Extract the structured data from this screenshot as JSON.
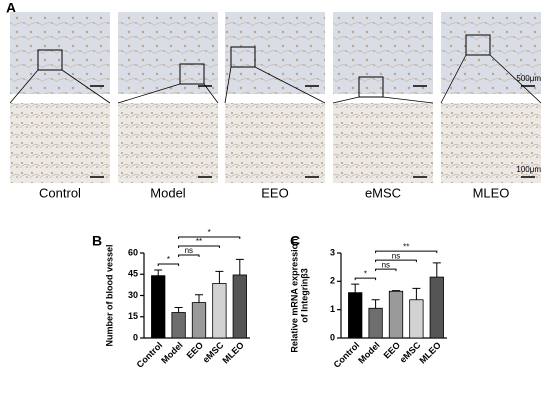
{
  "panel_a": {
    "label": "A",
    "groups": [
      "Control",
      "Model",
      "EEO",
      "eMSC",
      "MLEO"
    ],
    "scale_bars": [
      "500μm",
      "100μm"
    ]
  },
  "chart_data": [
    {
      "type": "bar",
      "panel": "B",
      "ylabel": [
        "Number of blood vessel"
      ],
      "categories": [
        "Control",
        "Model",
        "EEO",
        "eMSC",
        "MLEO"
      ],
      "values": [
        44,
        18,
        25,
        38.5,
        44.5
      ],
      "errors": [
        4,
        3.5,
        5.5,
        8.5,
        11
      ],
      "colors": [
        "#000000",
        "#6e6e6e",
        "#9a9a9a",
        "#d2d2d2",
        "#555555"
      ],
      "ylim": [
        0,
        60
      ],
      "yticks": [
        0,
        15,
        30,
        45,
        60
      ],
      "significance": [
        {
          "between": [
            "Control",
            "Model"
          ],
          "label": "*"
        },
        {
          "between": [
            "Model",
            "EEO"
          ],
          "label": "ns"
        },
        {
          "between": [
            "Model",
            "eMSC"
          ],
          "label": "**"
        },
        {
          "between": [
            "Model",
            "MLEO"
          ],
          "label": "*"
        }
      ]
    },
    {
      "type": "bar",
      "panel": "C",
      "ylabel": [
        "Relative mRNA expression",
        "of Integrinβ3"
      ],
      "categories": [
        "Control",
        "Model",
        "EEO",
        "eMSC",
        "MLEO"
      ],
      "values": [
        1.6,
        1.05,
        1.65,
        1.35,
        2.15
      ],
      "errors": [
        0.3,
        0.3,
        0.02,
        0.4,
        0.5
      ],
      "colors": [
        "#000000",
        "#6e6e6e",
        "#9a9a9a",
        "#d2d2d2",
        "#555555"
      ],
      "ylim": [
        0,
        3
      ],
      "yticks": [
        0,
        1,
        2,
        3
      ],
      "significance": [
        {
          "between": [
            "Control",
            "Model"
          ],
          "label": "*"
        },
        {
          "between": [
            "Model",
            "EEO"
          ],
          "label": "ns"
        },
        {
          "between": [
            "Model",
            "eMSC"
          ],
          "label": "ns"
        },
        {
          "between": [
            "Model",
            "MLEO"
          ],
          "label": "**"
        }
      ]
    }
  ]
}
